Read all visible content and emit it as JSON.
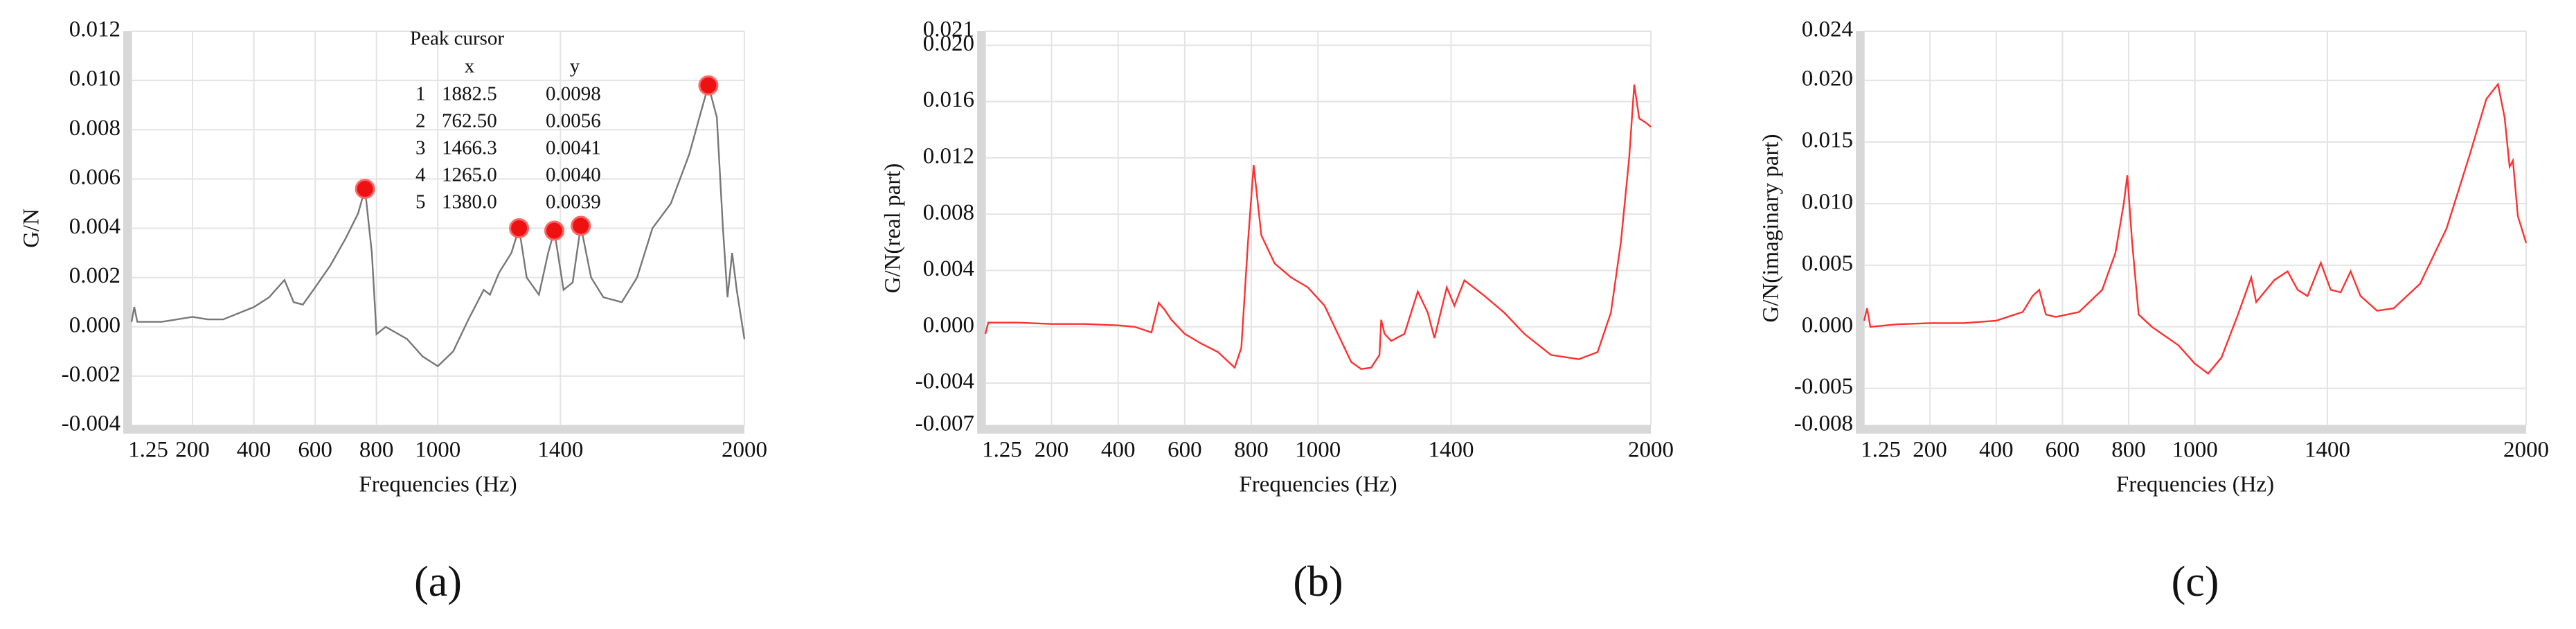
{
  "chart_data": [
    {
      "type": "line",
      "label": "(a)",
      "ylabel": "G/N",
      "xlabel": "Frequencies (Hz)",
      "color": "#777777",
      "grid": true,
      "xlim": [
        1.25,
        2000
      ],
      "xticks": [
        1.25,
        200,
        400,
        600,
        800,
        1000,
        1400,
        2000
      ],
      "ylim": [
        -0.004,
        0.012
      ],
      "yticks": [
        -0.004,
        -0.002,
        {
          "value": 0,
          "label": "0.000"
        },
        0.002,
        0.004,
        0.006,
        0.008,
        {
          "value": 0.01,
          "label": "0.010"
        },
        0.012
      ],
      "x": [
        1.25,
        10,
        20,
        100,
        200,
        250,
        300,
        400,
        450,
        500,
        530,
        560,
        600,
        650,
        700,
        740,
        762.5,
        785,
        800,
        830,
        900,
        950,
        1000,
        1050,
        1100,
        1150,
        1170,
        1200,
        1240,
        1265,
        1290,
        1330,
        1360,
        1380,
        1410,
        1440,
        1466.3,
        1500,
        1540,
        1600,
        1650,
        1700,
        1760,
        1820,
        1860,
        1882.5,
        1910,
        1930,
        1945,
        1960,
        1975,
        2000
      ],
      "values": [
        0.0002,
        0.0008,
        0.0002,
        0.0002,
        0.0004,
        0.0003,
        0.0003,
        0.0008,
        0.0012,
        0.0019,
        0.001,
        0.0009,
        0.0016,
        0.0025,
        0.0036,
        0.0046,
        0.0056,
        0.003,
        -0.0003,
        0.0,
        -0.0005,
        -0.0012,
        -0.0016,
        -0.001,
        0.0003,
        0.0015,
        0.0013,
        0.0022,
        0.003,
        0.004,
        0.002,
        0.0013,
        0.003,
        0.0039,
        0.0015,
        0.0018,
        0.0041,
        0.002,
        0.0012,
        0.001,
        0.002,
        0.004,
        0.005,
        0.007,
        0.0088,
        0.0098,
        0.0085,
        0.004,
        0.0012,
        0.003,
        0.0015,
        -0.0005
      ],
      "peaks": {
        "color": "#ee1111",
        "x": [
          1882.5,
          762.5,
          1466.3,
          1265,
          1380
        ],
        "values": [
          0.0098,
          0.0056,
          0.0041,
          0.004,
          0.0039
        ]
      },
      "peak_cursor": {
        "title": "Peak cursor",
        "columns": [
          "x",
          "y"
        ],
        "rows": [
          [
            "1",
            "1882.5",
            "0.0098"
          ],
          [
            "2",
            "762.50",
            "0.0056"
          ],
          [
            "3",
            "1466.3",
            "0.0041"
          ],
          [
            "4",
            "1265.0",
            "0.0040"
          ],
          [
            "5",
            "1380.0",
            "0.0039"
          ]
        ]
      }
    },
    {
      "type": "line",
      "label": "(b)",
      "ylabel": "G/N(real part)",
      "xlabel": "Frequencies (Hz)",
      "color": "#ff3030",
      "grid": true,
      "xlim": [
        1.25,
        2000
      ],
      "xticks": [
        1.25,
        200,
        400,
        600,
        800,
        1000,
        1400,
        2000
      ],
      "ylim": [
        -0.007,
        0.021
      ],
      "yticks": [
        -0.007,
        -0.004,
        {
          "value": 0,
          "label": "0.000"
        },
        0.004,
        0.008,
        0.012,
        0.016,
        {
          "value": 0.02,
          "label": "0.020"
        },
        0.021
      ],
      "x": [
        1.25,
        10,
        100,
        200,
        300,
        400,
        450,
        500,
        522,
        540,
        560,
        600,
        650,
        700,
        750,
        770,
        790,
        807,
        830,
        870,
        920,
        970,
        1020,
        1060,
        1100,
        1130,
        1160,
        1185,
        1190,
        1200,
        1220,
        1260,
        1300,
        1330,
        1350,
        1387,
        1410,
        1440,
        1500,
        1560,
        1620,
        1700,
        1784,
        1840,
        1880,
        1910,
        1935,
        1950,
        1965,
        1985,
        2000
      ],
      "values": [
        -0.0005,
        0.0003,
        0.0003,
        0.0002,
        0.0002,
        0.0001,
        0.0,
        -0.0004,
        0.0017,
        0.0012,
        0.0005,
        -0.0005,
        -0.0012,
        -0.0018,
        -0.0029,
        -0.0015,
        0.006,
        0.0115,
        0.0065,
        0.0045,
        0.0035,
        0.0028,
        0.0015,
        -0.0005,
        -0.0025,
        -0.003,
        -0.0029,
        -0.002,
        0.0005,
        -0.0005,
        -0.001,
        -0.0005,
        0.0025,
        0.001,
        -0.0008,
        0.0028,
        0.0015,
        0.0033,
        0.0022,
        0.001,
        -0.0005,
        -0.002,
        -0.0023,
        -0.0018,
        0.001,
        0.006,
        0.012,
        0.0172,
        0.0148,
        0.0145,
        0.0142
      ]
    },
    {
      "type": "line",
      "label": "(c)",
      "ylabel": "G/N(imaginary part)",
      "xlabel": "Frequencies (Hz)",
      "color": "#ff3030",
      "grid": true,
      "xlim": [
        1.25,
        2000
      ],
      "xticks": [
        1.25,
        200,
        400,
        600,
        800,
        1000,
        1400,
        2000
      ],
      "ylim": [
        -0.008,
        0.024
      ],
      "yticks": [
        -0.008,
        -0.005,
        {
          "value": 0,
          "label": "0.000"
        },
        0.005,
        {
          "value": 0.01,
          "label": "0.010"
        },
        0.015,
        {
          "value": 0.02,
          "label": "0.020"
        },
        0.024
      ],
      "x": [
        1.25,
        10,
        20,
        100,
        200,
        300,
        400,
        480,
        510,
        530,
        550,
        580,
        650,
        720,
        760,
        785,
        796,
        810,
        830,
        870,
        950,
        1000,
        1040,
        1080,
        1130,
        1170,
        1185,
        1200,
        1240,
        1280,
        1310,
        1340,
        1380,
        1410,
        1440,
        1470,
        1500,
        1550,
        1600,
        1680,
        1760,
        1830,
        1880,
        1915,
        1935,
        1950,
        1960,
        1975,
        2000
      ],
      "values": [
        0.0005,
        0.0015,
        0.0,
        0.0002,
        0.0003,
        0.0003,
        0.0005,
        0.0012,
        0.0025,
        0.003,
        0.001,
        0.0008,
        0.0012,
        0.003,
        0.006,
        0.01,
        0.0123,
        0.007,
        0.001,
        0.0,
        -0.0015,
        -0.003,
        -0.0038,
        -0.0025,
        0.001,
        0.004,
        0.002,
        0.0025,
        0.0038,
        0.0045,
        0.003,
        0.0025,
        0.0052,
        0.003,
        0.0028,
        0.0045,
        0.0025,
        0.0013,
        0.0015,
        0.0035,
        0.008,
        0.014,
        0.0185,
        0.0197,
        0.017,
        0.013,
        0.0135,
        0.009,
        0.0068
      ]
    }
  ]
}
